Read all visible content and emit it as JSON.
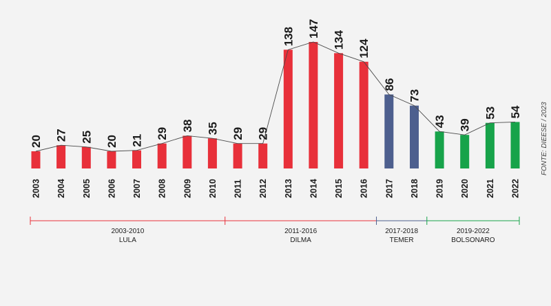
{
  "chart_data": {
    "type": "bar",
    "categories": [
      "2003",
      "2004",
      "2005",
      "2006",
      "2007",
      "2008",
      "2009",
      "2010",
      "2011",
      "2012",
      "2013",
      "2014",
      "2015",
      "2016",
      "2017",
      "2018",
      "2019",
      "2020",
      "2021",
      "2022"
    ],
    "values": [
      20,
      27,
      25,
      20,
      21,
      29,
      38,
      35,
      29,
      29,
      138,
      147,
      134,
      124,
      86,
      73,
      43,
      39,
      53,
      54
    ],
    "value_labels": [
      "20",
      "27",
      "25",
      "20",
      "21",
      "29",
      "38",
      "35",
      "29",
      "29",
      "138",
      "147",
      "134",
      "124",
      "86",
      "73",
      "43",
      "39",
      "53",
      "54"
    ],
    "title": "",
    "xlabel": "",
    "ylabel": "",
    "ylim": [
      0,
      150
    ],
    "grid": false,
    "trend_line": true,
    "periods": [
      {
        "range": "2003-2010",
        "name": "LULA",
        "start": 0,
        "end": 7,
        "color": "#e8303a"
      },
      {
        "range": "2011-2016",
        "name": "DILMA",
        "start": 8,
        "end": 13,
        "color": "#e8303a"
      },
      {
        "range": "2017-2018",
        "name": "TEMER",
        "start": 14,
        "end": 15,
        "color": "#4d5f8e"
      },
      {
        "range": "2019-2022",
        "name": "BOLSONARO",
        "start": 16,
        "end": 19,
        "color": "#17a34a"
      }
    ],
    "source": "FONTE: DIEESE / 2023"
  }
}
